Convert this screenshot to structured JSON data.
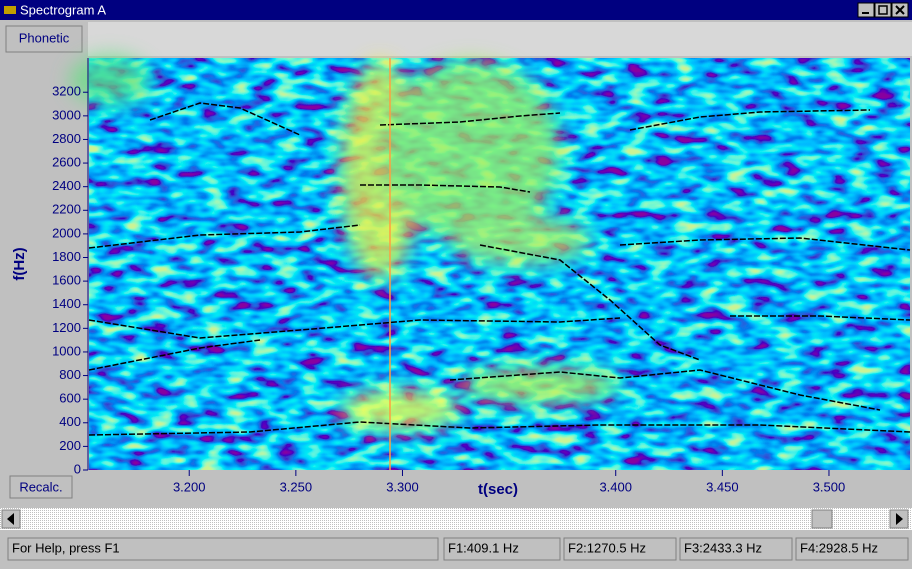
{
  "window": {
    "title": "Spectrogram A"
  },
  "toolbar": {
    "phonetic_button": "Phonetic"
  },
  "spectrogram": {
    "ylabel": "f(Hz)",
    "xlabel": "t(sec)",
    "ylim": [
      0,
      3490
    ],
    "yticks": [
      0,
      200,
      400,
      600,
      800,
      1000,
      1200,
      1400,
      1600,
      1800,
      2000,
      2200,
      2400,
      2600,
      2800,
      3000,
      3200
    ],
    "xlim": [
      3.153,
      3.538
    ],
    "xticks": [
      {
        "value": 3.2,
        "label": "3.200"
      },
      {
        "value": 3.25,
        "label": "3.250"
      },
      {
        "value": 3.3,
        "label": "3.300"
      },
      {
        "value": 3.4,
        "label": "3.400"
      },
      {
        "value": 3.45,
        "label": "3.450"
      },
      {
        "value": 3.5,
        "label": "3.500"
      }
    ],
    "recalc_button": "Recalc."
  },
  "status_bar": {
    "help": "For Help, press F1",
    "fields": [
      "F1:409.1 Hz",
      "F2:1270.5 Hz",
      "F3:2433.3 Hz",
      "F4:2928.5 Hz"
    ]
  }
}
